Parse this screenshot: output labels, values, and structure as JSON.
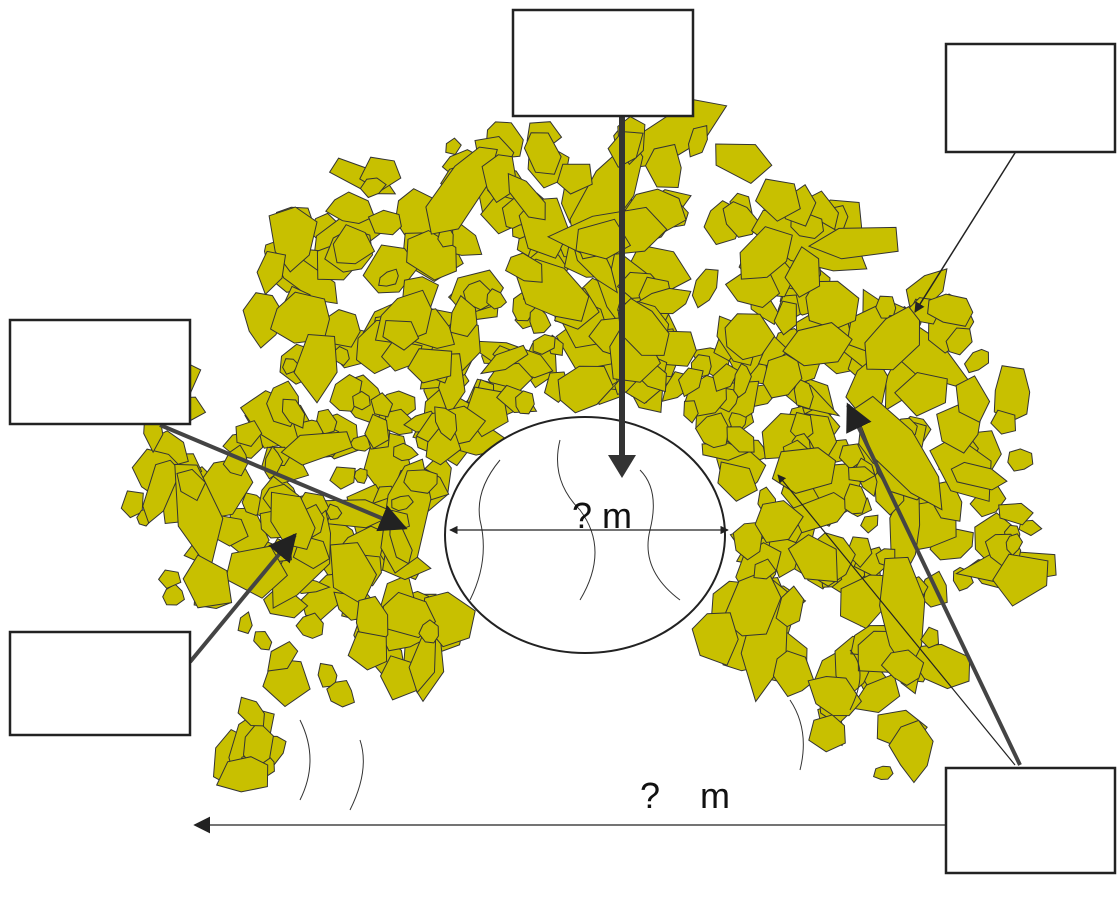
{
  "labels": {
    "inner_width": "? m",
    "outer_width": "?    m"
  }
}
